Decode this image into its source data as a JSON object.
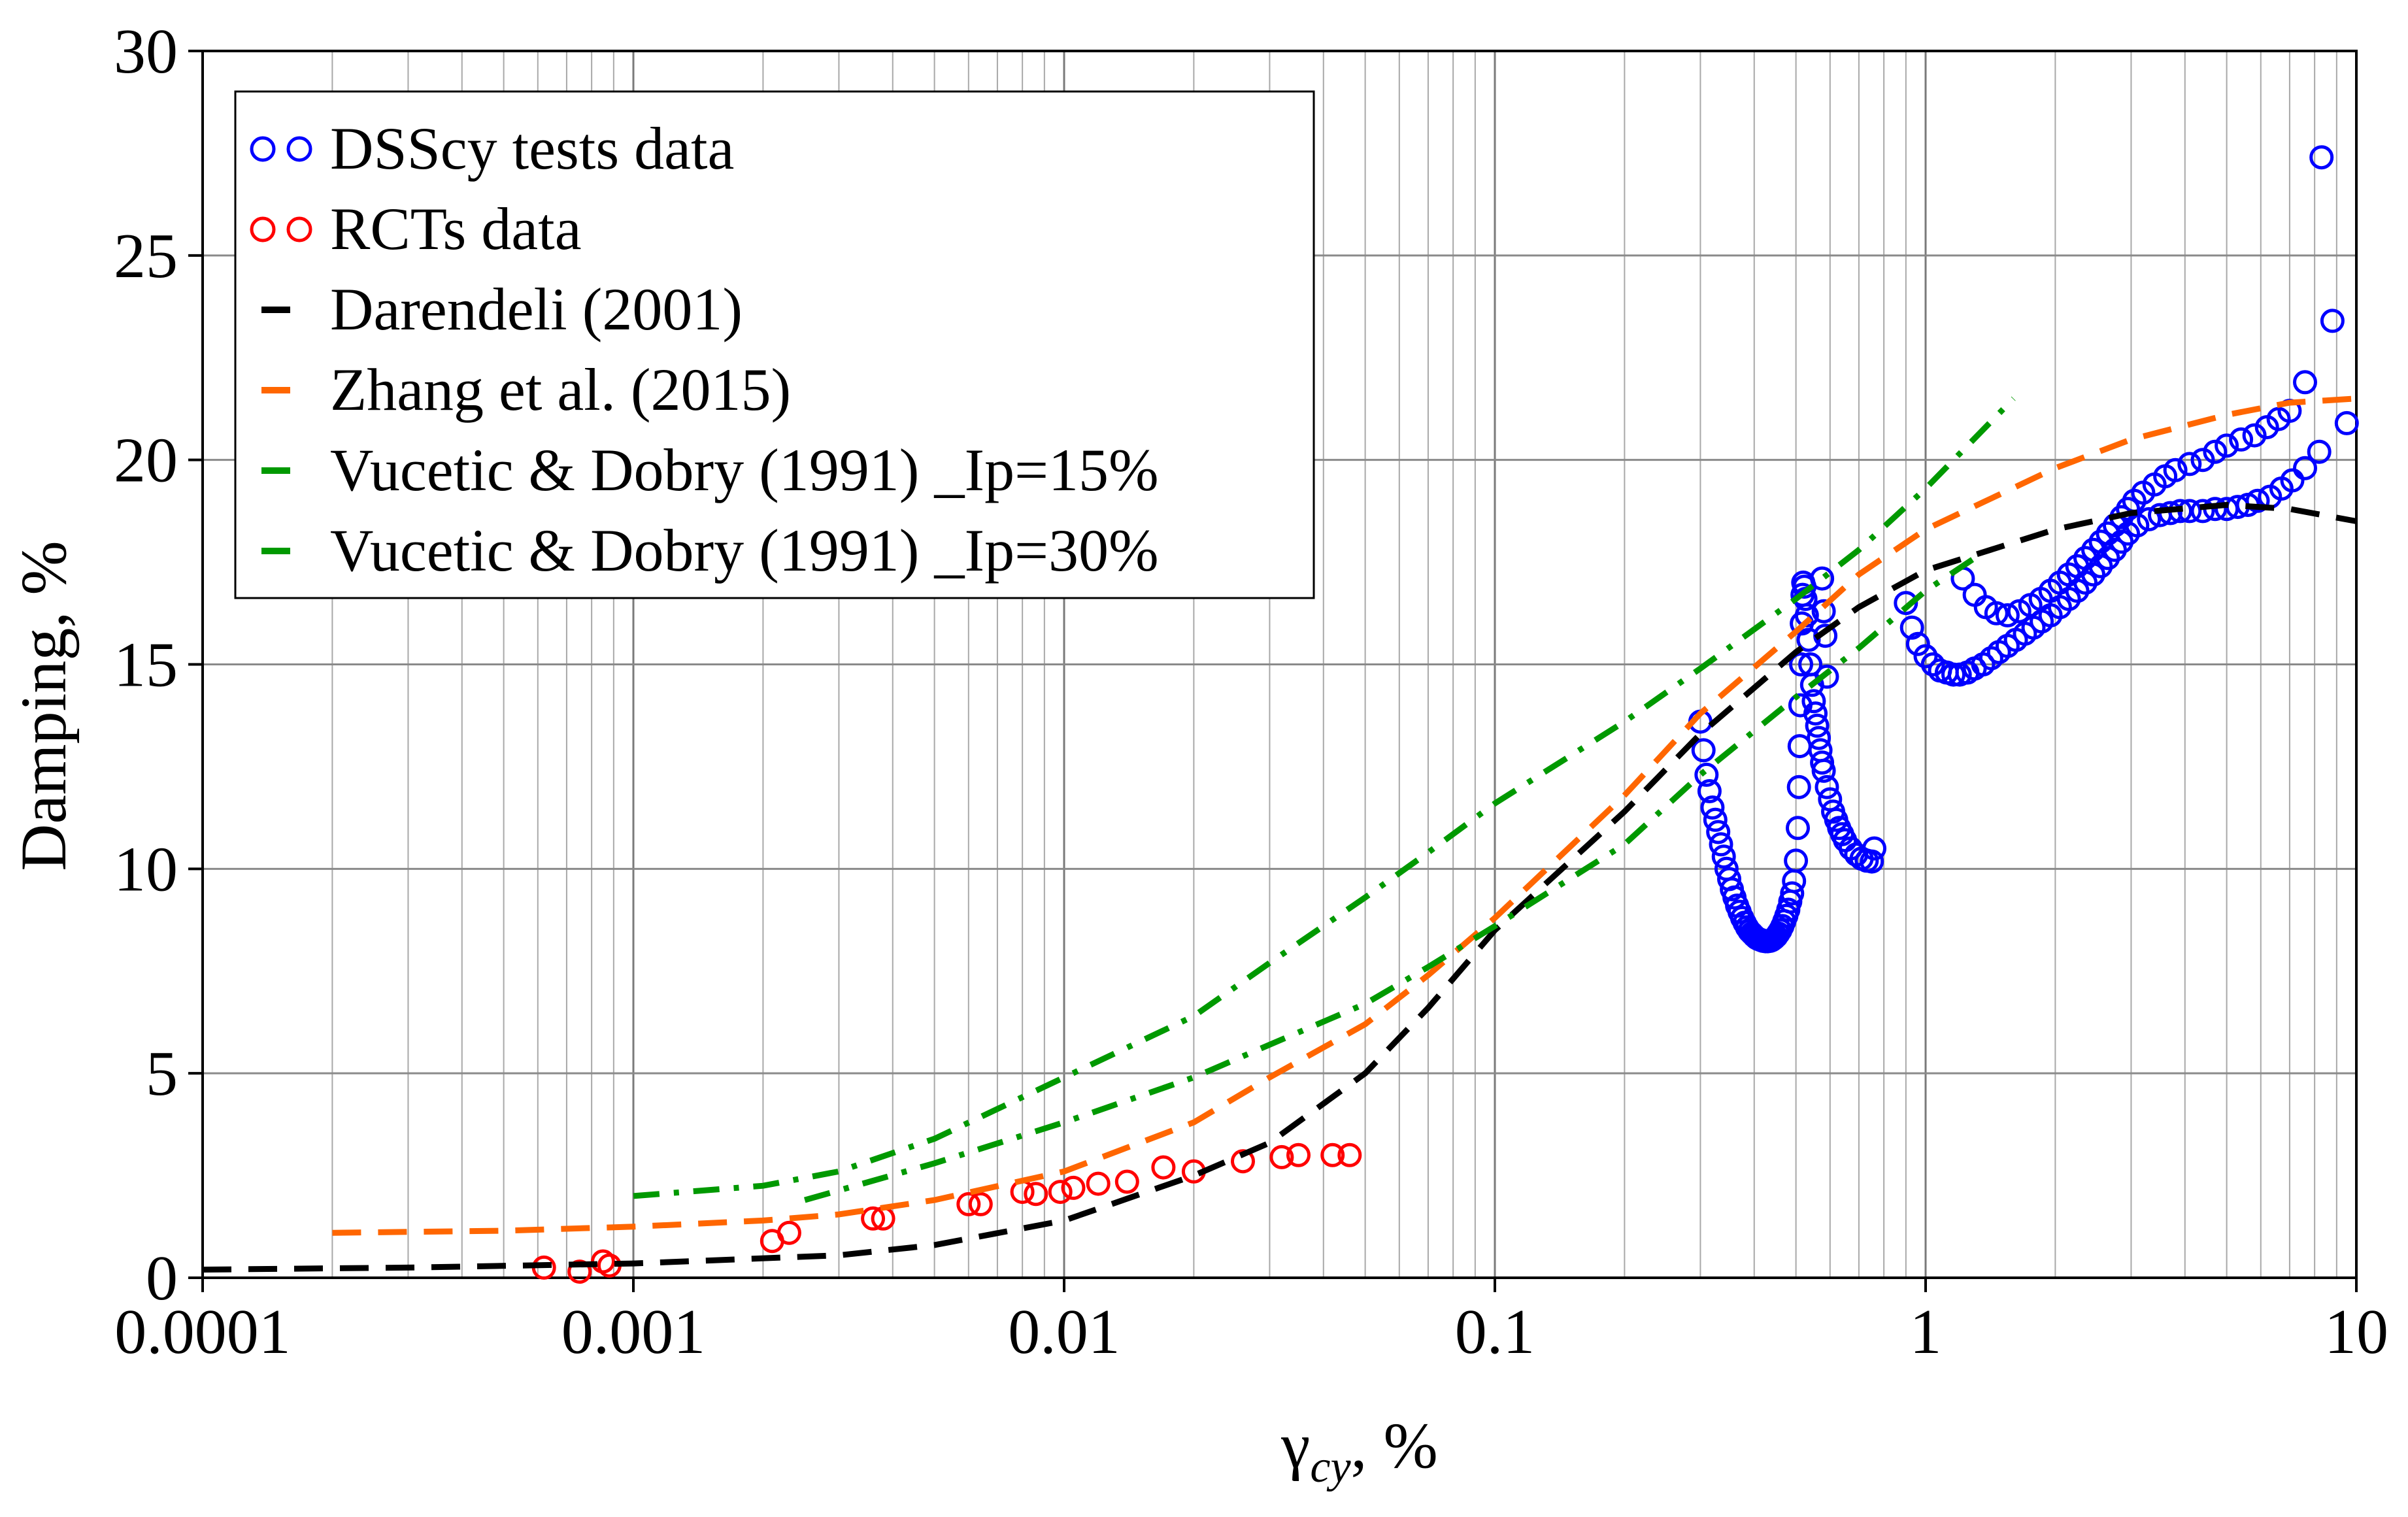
{
  "chart_data": {
    "type": "scatter",
    "title": "",
    "xlabel": "γ",
    "xlabel_subscript": "cy",
    "xlabel_suffix": ", %",
    "ylabel": "Damping,  %",
    "xscale": "log",
    "xlim": [
      0.0001,
      10
    ],
    "ylim": [
      0,
      30
    ],
    "grid": true,
    "legend_position": "top-left",
    "x_ticks": [
      {
        "value": 0.0001,
        "label": "0.0001"
      },
      {
        "value": 0.001,
        "label": "0.001"
      },
      {
        "value": 0.01,
        "label": "0.01"
      },
      {
        "value": 0.1,
        "label": "0.1"
      },
      {
        "value": 1,
        "label": "1"
      },
      {
        "value": 10,
        "label": "10"
      }
    ],
    "y_ticks": [
      {
        "value": 0,
        "label": "0"
      },
      {
        "value": 5,
        "label": "5"
      },
      {
        "value": 10,
        "label": "10"
      },
      {
        "value": 15,
        "label": "15"
      },
      {
        "value": 20,
        "label": "20"
      },
      {
        "value": 25,
        "label": "25"
      },
      {
        "value": 30,
        "label": "30"
      }
    ],
    "series": [
      {
        "name": "DSScy tests data",
        "kind": "markers",
        "color": "#0000ff",
        "points": [
          [
            0.3,
            13.6
          ],
          [
            0.305,
            12.9
          ],
          [
            0.31,
            12.3
          ],
          [
            0.315,
            11.9
          ],
          [
            0.32,
            11.5
          ],
          [
            0.325,
            11.2
          ],
          [
            0.33,
            10.9
          ],
          [
            0.335,
            10.6
          ],
          [
            0.34,
            10.3
          ],
          [
            0.345,
            10.0
          ],
          [
            0.35,
            9.75
          ],
          [
            0.355,
            9.5
          ],
          [
            0.36,
            9.3
          ],
          [
            0.365,
            9.1
          ],
          [
            0.37,
            8.95
          ],
          [
            0.375,
            8.8
          ],
          [
            0.38,
            8.68
          ],
          [
            0.385,
            8.57
          ],
          [
            0.39,
            8.48
          ],
          [
            0.395,
            8.42
          ],
          [
            0.4,
            8.36
          ],
          [
            0.405,
            8.31
          ],
          [
            0.41,
            8.28
          ],
          [
            0.415,
            8.26
          ],
          [
            0.42,
            8.24
          ],
          [
            0.425,
            8.23
          ],
          [
            0.43,
            8.23
          ],
          [
            0.435,
            8.24
          ],
          [
            0.44,
            8.26
          ],
          [
            0.445,
            8.3
          ],
          [
            0.45,
            8.35
          ],
          [
            0.455,
            8.42
          ],
          [
            0.46,
            8.5
          ],
          [
            0.465,
            8.6
          ],
          [
            0.47,
            8.72
          ],
          [
            0.475,
            8.85
          ],
          [
            0.48,
            9.0
          ],
          [
            0.485,
            9.2
          ],
          [
            0.49,
            9.4
          ],
          [
            0.495,
            9.7
          ],
          [
            0.5,
            10.2
          ],
          [
            0.505,
            11.0
          ],
          [
            0.508,
            12.0
          ],
          [
            0.51,
            13.0
          ],
          [
            0.512,
            14.0
          ],
          [
            0.514,
            15.0
          ],
          [
            0.516,
            16.0
          ],
          [
            0.518,
            16.7
          ],
          [
            0.52,
            17.0
          ],
          [
            0.523,
            16.9
          ],
          [
            0.526,
            16.6
          ],
          [
            0.53,
            16.2
          ],
          [
            0.535,
            15.6
          ],
          [
            0.54,
            15.0
          ],
          [
            0.545,
            14.5
          ],
          [
            0.55,
            14.1
          ],
          [
            0.555,
            13.8
          ],
          [
            0.56,
            13.5
          ],
          [
            0.565,
            13.2
          ],
          [
            0.57,
            12.9
          ],
          [
            0.575,
            12.6
          ],
          [
            0.58,
            12.4
          ],
          [
            0.59,
            12.0
          ],
          [
            0.6,
            11.7
          ],
          [
            0.61,
            11.4
          ],
          [
            0.62,
            11.2
          ],
          [
            0.63,
            11.0
          ],
          [
            0.64,
            10.85
          ],
          [
            0.65,
            10.7
          ],
          [
            0.67,
            10.5
          ],
          [
            0.69,
            10.35
          ],
          [
            0.71,
            10.25
          ],
          [
            0.73,
            10.2
          ],
          [
            0.75,
            10.18
          ],
          [
            0.76,
            10.5
          ],
          [
            0.575,
            17.1
          ],
          [
            0.58,
            16.3
          ],
          [
            0.585,
            15.7
          ],
          [
            0.59,
            14.7
          ],
          [
            0.9,
            16.5
          ],
          [
            0.93,
            15.9
          ],
          [
            0.96,
            15.5
          ],
          [
            1.0,
            15.2
          ],
          [
            1.04,
            15.0
          ],
          [
            1.08,
            14.85
          ],
          [
            1.12,
            14.8
          ],
          [
            1.16,
            14.75
          ],
          [
            1.2,
            14.75
          ],
          [
            1.25,
            14.8
          ],
          [
            1.3,
            14.9
          ],
          [
            1.36,
            15.0
          ],
          [
            1.42,
            15.15
          ],
          [
            1.48,
            15.3
          ],
          [
            1.55,
            15.45
          ],
          [
            1.62,
            15.6
          ],
          [
            1.7,
            15.75
          ],
          [
            1.78,
            15.9
          ],
          [
            1.86,
            16.05
          ],
          [
            1.95,
            16.2
          ],
          [
            2.05,
            16.4
          ],
          [
            2.15,
            16.6
          ],
          [
            2.25,
            16.8
          ],
          [
            2.35,
            17.0
          ],
          [
            2.45,
            17.2
          ],
          [
            2.55,
            17.4
          ],
          [
            2.65,
            17.6
          ],
          [
            2.75,
            17.8
          ],
          [
            2.85,
            18.0
          ],
          [
            2.95,
            18.2
          ],
          [
            3.1,
            18.4
          ],
          [
            3.3,
            18.55
          ],
          [
            3.5,
            18.65
          ],
          [
            3.7,
            18.7
          ],
          [
            3.9,
            18.75
          ],
          [
            4.1,
            18.75
          ],
          [
            4.4,
            18.75
          ],
          [
            4.7,
            18.8
          ],
          [
            5.0,
            18.8
          ],
          [
            5.3,
            18.85
          ],
          [
            5.6,
            18.9
          ],
          [
            5.9,
            19.0
          ],
          [
            6.3,
            19.1
          ],
          [
            6.7,
            19.3
          ],
          [
            7.1,
            19.5
          ],
          [
            7.6,
            19.8
          ],
          [
            8.2,
            20.2
          ],
          [
            9.5,
            20.9
          ],
          [
            1.22,
            17.1
          ],
          [
            1.3,
            16.7
          ],
          [
            1.38,
            16.4
          ],
          [
            1.46,
            16.25
          ],
          [
            1.55,
            16.2
          ],
          [
            1.65,
            16.3
          ],
          [
            1.75,
            16.45
          ],
          [
            1.85,
            16.6
          ],
          [
            1.95,
            16.8
          ],
          [
            2.05,
            17.0
          ],
          [
            2.15,
            17.2
          ],
          [
            2.25,
            17.4
          ],
          [
            2.35,
            17.6
          ],
          [
            2.45,
            17.8
          ],
          [
            2.55,
            18.0
          ],
          [
            2.65,
            18.2
          ],
          [
            2.75,
            18.4
          ],
          [
            2.85,
            18.6
          ],
          [
            2.95,
            18.8
          ],
          [
            3.05,
            19.0
          ],
          [
            3.2,
            19.2
          ],
          [
            3.4,
            19.4
          ],
          [
            3.6,
            19.6
          ],
          [
            3.8,
            19.75
          ],
          [
            4.1,
            19.9
          ],
          [
            4.4,
            20.0
          ],
          [
            4.7,
            20.2
          ],
          [
            5.0,
            20.35
          ],
          [
            5.4,
            20.5
          ],
          [
            5.8,
            20.6
          ],
          [
            6.2,
            20.8
          ],
          [
            6.6,
            21.0
          ],
          [
            7.0,
            21.2
          ],
          [
            7.6,
            21.9
          ],
          [
            8.8,
            23.4
          ],
          [
            8.3,
            27.4
          ]
        ]
      },
      {
        "name": "RCTs data",
        "kind": "markers",
        "color": "#ff0000",
        "points": [
          [
            0.00062,
            0.25
          ],
          [
            0.00075,
            0.15
          ],
          [
            0.00085,
            0.4
          ],
          [
            0.00088,
            0.3
          ],
          [
            0.0021,
            0.9
          ],
          [
            0.0023,
            1.1
          ],
          [
            0.0036,
            1.45
          ],
          [
            0.0038,
            1.45
          ],
          [
            0.006,
            1.8
          ],
          [
            0.0064,
            1.8
          ],
          [
            0.008,
            2.1
          ],
          [
            0.0086,
            2.05
          ],
          [
            0.0098,
            2.1
          ],
          [
            0.0105,
            2.2
          ],
          [
            0.012,
            2.3
          ],
          [
            0.014,
            2.35
          ],
          [
            0.017,
            2.7
          ],
          [
            0.02,
            2.6
          ],
          [
            0.026,
            2.85
          ],
          [
            0.032,
            2.95
          ],
          [
            0.035,
            3.0
          ],
          [
            0.042,
            3.0
          ],
          [
            0.046,
            3.0
          ]
        ]
      },
      {
        "name": "Darendeli (2001)",
        "kind": "line",
        "dash": "dash",
        "color": "#000000",
        "points": [
          [
            0.0001,
            0.2
          ],
          [
            0.0003,
            0.25
          ],
          [
            0.001,
            0.35
          ],
          [
            0.003,
            0.55
          ],
          [
            0.005,
            0.8
          ],
          [
            0.01,
            1.4
          ],
          [
            0.02,
            2.5
          ],
          [
            0.03,
            3.3
          ],
          [
            0.05,
            5.0
          ],
          [
            0.07,
            6.6
          ],
          [
            0.1,
            8.5
          ],
          [
            0.2,
            11.4
          ],
          [
            0.3,
            13.3
          ],
          [
            0.5,
            15.3
          ],
          [
            0.7,
            16.4
          ],
          [
            1.0,
            17.3
          ],
          [
            2.0,
            18.3
          ],
          [
            3.0,
            18.7
          ],
          [
            5.0,
            18.9
          ],
          [
            7.0,
            18.8
          ],
          [
            10,
            18.5
          ]
        ]
      },
      {
        "name": "Zhang et al. (2015)",
        "kind": "line",
        "dash": "dash",
        "color": "#ff6600",
        "points": [
          [
            0.0002,
            1.1
          ],
          [
            0.0005,
            1.15
          ],
          [
            0.001,
            1.25
          ],
          [
            0.002,
            1.4
          ],
          [
            0.003,
            1.55
          ],
          [
            0.005,
            1.9
          ],
          [
            0.01,
            2.6
          ],
          [
            0.02,
            3.8
          ],
          [
            0.03,
            4.9
          ],
          [
            0.05,
            6.2
          ],
          [
            0.07,
            7.4
          ],
          [
            0.1,
            8.8
          ],
          [
            0.2,
            11.8
          ],
          [
            0.3,
            13.8
          ],
          [
            0.5,
            15.8
          ],
          [
            0.7,
            17.2
          ],
          [
            1.0,
            18.3
          ],
          [
            2.0,
            19.8
          ],
          [
            3.0,
            20.5
          ],
          [
            5.0,
            21.1
          ],
          [
            7.0,
            21.4
          ],
          [
            10,
            21.5
          ]
        ]
      },
      {
        "name": "Vucetic & Dobry (1991)  _Ip=15%",
        "kind": "line",
        "dash": "dashdot",
        "color": "#009900",
        "points": [
          [
            0.001,
            2.0
          ],
          [
            0.002,
            2.25
          ],
          [
            0.003,
            2.6
          ],
          [
            0.005,
            3.4
          ],
          [
            0.01,
            4.9
          ],
          [
            0.02,
            6.4
          ],
          [
            0.03,
            7.7
          ],
          [
            0.05,
            9.3
          ],
          [
            0.07,
            10.4
          ],
          [
            0.1,
            11.6
          ],
          [
            0.2,
            13.6
          ],
          [
            0.3,
            14.9
          ],
          [
            0.5,
            16.6
          ],
          [
            0.7,
            17.8
          ],
          [
            1.0,
            19.3
          ],
          [
            1.6,
            21.5
          ]
        ]
      },
      {
        "name": "Vucetic & Dobry (1991)  _Ip=30%",
        "kind": "line",
        "dash": "dashdot",
        "color": "#009900",
        "points": [
          [
            0.0025,
            1.9
          ],
          [
            0.005,
            2.8
          ],
          [
            0.01,
            3.8
          ],
          [
            0.02,
            4.9
          ],
          [
            0.03,
            5.7
          ],
          [
            0.05,
            6.7
          ],
          [
            0.07,
            7.6
          ],
          [
            0.1,
            8.6
          ],
          [
            0.2,
            10.6
          ],
          [
            0.3,
            12.3
          ],
          [
            0.5,
            14.2
          ],
          [
            0.7,
            15.4
          ],
          [
            1.0,
            16.8
          ],
          [
            1.3,
            17.6
          ]
        ]
      }
    ]
  }
}
